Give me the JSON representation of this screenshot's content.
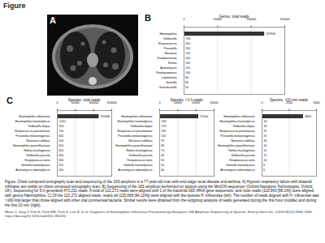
{
  "header": {
    "title": "Figure"
  },
  "panel_labels": [
    "A",
    "B",
    "C"
  ],
  "chart_data": [
    {
      "type": "bar",
      "orientation": "horizontal",
      "title": "Genus, total reads",
      "categories": [
        "Haemophilus",
        "Veillonella",
        "Streptococcus",
        "Prevotella",
        "Neisseria",
        "Fusobacterium",
        "Rothia",
        "Actinomyces",
        "Porphyromonas",
        "Leptotrichia",
        "Gemella",
        "Granulicatella"
      ],
      "values": [
        119943,
        700,
        450,
        350,
        250,
        200,
        150,
        120,
        100,
        80,
        60,
        50
      ],
      "color": "#333333",
      "xlim": [
        0,
        150000
      ],
      "xticks": [
        0,
        50000,
        100000,
        150000
      ],
      "data_labels": true
    },
    {
      "type": "bar",
      "orientation": "horizontal",
      "title": "Species, total reads",
      "categories": [
        "Haemophilus influenzae",
        "Haemophilus haemolyticus",
        "Veillonella dispar",
        "Streptococcus pneumoniae",
        "Prevotella melaninogenica",
        "Neisseria subflava",
        "Haemophilus parainfluenzae",
        "Rothia mucilaginosa",
        "Veillonella parvula",
        "Streptococcus mitis",
        "Gemella haemolysans",
        "Actinomyces odontolyticus"
      ],
      "values": [
        115068,
        1200,
        900,
        700,
        600,
        500,
        450,
        400,
        350,
        300,
        250,
        200
      ],
      "color": "#333333",
      "xlim": [
        0,
        150000
      ],
      "xticks": [
        0,
        50000,
        100000,
        150000
      ],
      "data_labels": true
    },
    {
      "type": "bar",
      "orientation": "horizontal",
      "title": "Species, <1 h reads",
      "categories": [
        "Haemophilus influenzae",
        "Haemophilus haemolyticus",
        "Veillonella dispar",
        "Streptococcus pneumoniae",
        "Prevotella melaninogenica",
        "Neisseria subflava",
        "Haemophilus parainfluenzae",
        "Rothia mucilaginosa",
        "Veillonella parvula",
        "Streptococcus mitis",
        "Gemella haemolysans",
        "Actinomyces odontolyticus"
      ],
      "values": [
        21500,
        230,
        170,
        130,
        110,
        95,
        85,
        75,
        65,
        55,
        45,
        40
      ],
      "color": "#333333",
      "xlim": [
        0,
        30000
      ],
      "xticks": [
        0,
        10000,
        20000,
        30000
      ],
      "data_labels": true
    },
    {
      "type": "bar",
      "orientation": "horizontal",
      "title": "Species, <10 min reads",
      "categories": [
        "Haemophilus influenzae",
        "Haemophilus haemolyticus",
        "Veillonella dispar",
        "Streptococcus pneumoniae",
        "Prevotella melaninogenica",
        "Neisseria subflava",
        "Haemophilus parainfluenzae",
        "Rothia mucilaginosa",
        "Veillonella parvula",
        "Streptococcus mitis",
        "Gemella haemolysans",
        "Actinomyces odontolyticus"
      ],
      "values": [
        3800,
        40,
        30,
        25,
        20,
        18,
        16,
        14,
        12,
        10,
        8,
        6
      ],
      "color": "#333333",
      "xlim": [
        0,
        5000
      ],
      "xticks": [
        0,
        2500,
        5000
      ],
      "data_labels": true
    }
  ],
  "caption": "Figure. Chest computed tomography scan and sequencing of the 16S amplicon in a 77-year-old man with end-stage renal disease and asthma. A) Hypoxic respiratory failure with bilateral infiltrates are visible on chest computed tomography scan. B) Sequencing of the 16S amplicon performed on sputum using the MinION sequencer (Oxford Nanopore Technologies, Oxford, UK). Sequencing for 5 h generated 470,231 reads. A total of 122,272 reads were aligned with 1 of the bacterial 16S rRNA gene sequences, and most reads (119,943 [98.1%]) were aligned with genus Haemophilus. C) Of the 122,272 aligned reads, nearly all (115,068 [94.11%]) were aligned with the species H. influenzae (left). The number of reads aligned with H. influenzae was >100-fold larger than those aligned with other oral commensal bacteria. Similar results were obtained from the subgroup analysis of reads generated during the first hour (middle) and during the first 10 min (right).",
  "citation": "Moon J, Jang Y, Kim N, Park WB, Park K, Lee S, et al. Diagnosis of Haemophilus Influenzae Pneumonia by Nanopore 16S Amplicon Sequencing of Sputum. Emerg Infect Dis. 2018;24(10):1944-1946. https://doi.org/10.3201/eid2410.180234"
}
